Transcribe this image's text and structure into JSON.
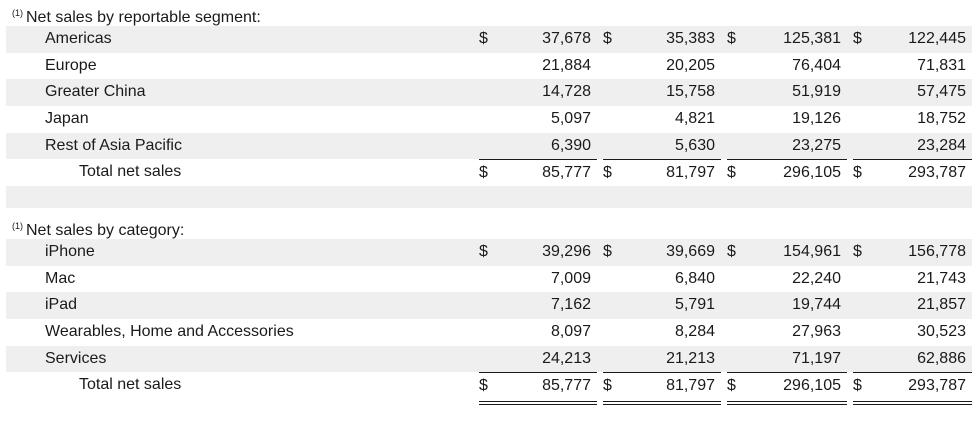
{
  "segment": {
    "footnote": "(1)",
    "heading": "Net sales by reportable segment:",
    "rows": [
      {
        "label": "Americas",
        "values": [
          "37,678",
          "35,383",
          "125,381",
          "122,445"
        ],
        "currency": "$"
      },
      {
        "label": "Europe",
        "values": [
          "21,884",
          "20,205",
          "76,404",
          "71,831"
        ]
      },
      {
        "label": "Greater China",
        "values": [
          "14,728",
          "15,758",
          "51,919",
          "57,475"
        ]
      },
      {
        "label": "Japan",
        "values": [
          "5,097",
          "4,821",
          "19,126",
          "18,752"
        ]
      },
      {
        "label": "Rest of Asia Pacific",
        "values": [
          "6,390",
          "5,630",
          "23,275",
          "23,284"
        ]
      }
    ],
    "total": {
      "label": "Total net sales",
      "values": [
        "85,777",
        "81,797",
        "296,105",
        "293,787"
      ],
      "currency": "$"
    }
  },
  "category": {
    "footnote": "(1)",
    "heading": "Net sales by category:",
    "rows": [
      {
        "label": "iPhone",
        "values": [
          "39,296",
          "39,669",
          "154,961",
          "156,778"
        ],
        "currency": "$"
      },
      {
        "label": "Mac",
        "values": [
          "7,009",
          "6,840",
          "22,240",
          "21,743"
        ]
      },
      {
        "label": "iPad",
        "values": [
          "7,162",
          "5,791",
          "19,744",
          "21,857"
        ]
      },
      {
        "label": "Wearables, Home and Accessories",
        "values": [
          "8,097",
          "8,284",
          "27,963",
          "30,523"
        ]
      },
      {
        "label": "Services",
        "values": [
          "24,213",
          "21,213",
          "71,197",
          "62,886"
        ]
      }
    ],
    "total": {
      "label": "Total net sales",
      "values": [
        "85,777",
        "81,797",
        "296,105",
        "293,787"
      ],
      "currency": "$"
    }
  }
}
